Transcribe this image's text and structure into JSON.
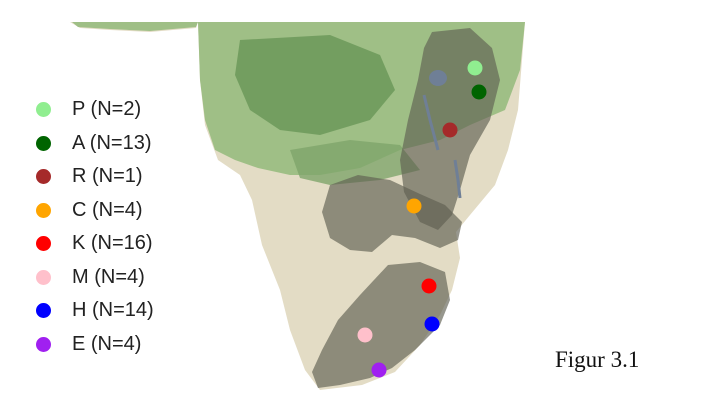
{
  "legend": [
    {
      "label": "P (N=2)",
      "color": "#90ee90"
    },
    {
      "label": "A (N=13)",
      "color": "#006400"
    },
    {
      "label": "R (N=1)",
      "color": "#a52a2a"
    },
    {
      "label": "C (N=4)",
      "color": "#ffa500"
    },
    {
      "label": "K (N=16)",
      "color": "#ff0000"
    },
    {
      "label": "M (N=4)",
      "color": "#ffc0cb"
    },
    {
      "label": "H (N=14)",
      "color": "#0000ff"
    },
    {
      "label": "E (N=4)",
      "color": "#a020f0"
    }
  ],
  "caption": "Figur 3.1",
  "map": {
    "land_dry_color": "#e3dcc5",
    "land_green_color": "#9fbf86",
    "forest_color": "#6e9a5c",
    "range_overlay_color": "#5f5f52",
    "lake_color": "#6f7f96"
  }
}
